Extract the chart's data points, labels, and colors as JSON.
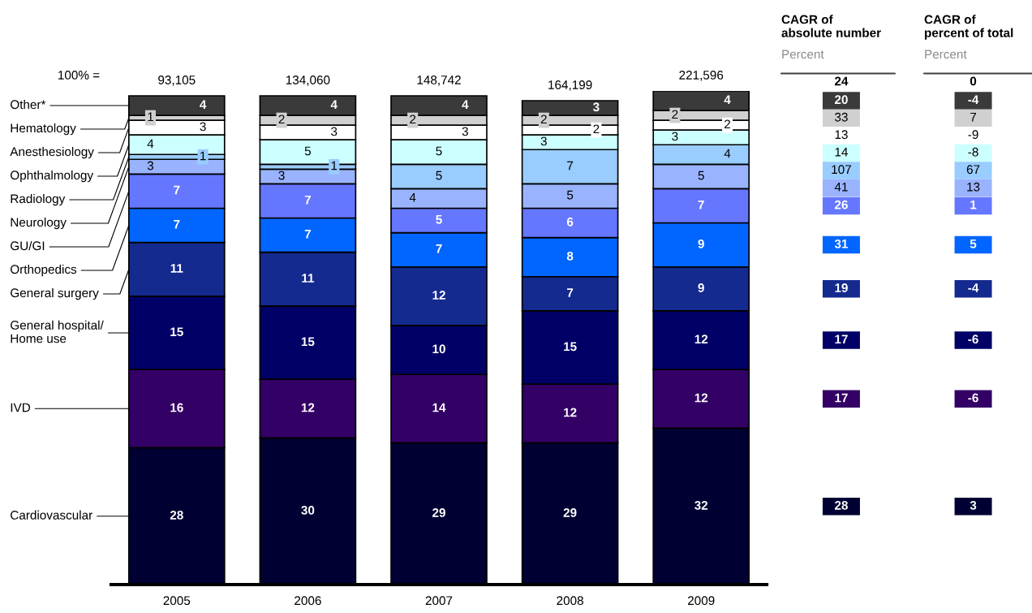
{
  "chart_data": [
    {
      "type": "bar",
      "stacked": true,
      "data_labels": true,
      "legend": "left",
      "categories": [
        "2005",
        "2006",
        "2007",
        "2008",
        "2009"
      ],
      "annotations": [
        "100% =",
        {
          "text": "93,105",
          "x": "2005",
          "y": 100
        },
        {
          "text": "134,060",
          "x": "2006",
          "y": 100
        },
        {
          "text": "148,742",
          "x": "2007",
          "y": 100
        },
        {
          "text": "164,199",
          "x": "2008",
          "y": 99
        },
        {
          "text": "221,596",
          "x": "2009",
          "y": 101
        }
      ],
      "series": [
        {
          "name": "Cardiovascular",
          "color": "#000033",
          "values": [
            28,
            30,
            29,
            29,
            32
          ]
        },
        {
          "name": "IVD",
          "color": "#330066",
          "values": [
            16,
            12,
            14,
            12,
            12
          ]
        },
        {
          "name": "General hospital/\nHome use",
          "color": "#000066",
          "values": [
            15,
            15,
            10,
            15,
            12
          ]
        },
        {
          "name": "General surgery",
          "color": "#142a8f",
          "values": [
            11,
            11,
            12,
            7,
            9
          ]
        },
        {
          "name": "Orthopedics",
          "color": "#0066ff",
          "values": [
            7,
            7,
            7,
            8,
            9
          ]
        },
        {
          "name": "GU/GI",
          "color": "#6677ff",
          "values": [
            7,
            7,
            5,
            6,
            7
          ]
        },
        {
          "name": "Neurology",
          "color": "#99b3ff",
          "values": [
            3,
            3,
            4,
            5,
            5
          ]
        },
        {
          "name": "Radiology",
          "color": "#99ccff",
          "values": [
            1,
            1,
            5,
            7,
            4
          ]
        },
        {
          "name": "Ophthalmology",
          "color": "#ccffff",
          "values": [
            4,
            5,
            5,
            3,
            3
          ]
        },
        {
          "name": "Anesthesiology",
          "color": "#ffffff",
          "values": [
            3,
            3,
            3,
            2,
            2
          ]
        },
        {
          "name": "Hematology",
          "color": "#d0d0d0",
          "values": [
            1,
            2,
            2,
            2,
            2
          ]
        },
        {
          "name": "Other*",
          "color": "#3a3a3a",
          "values": [
            4,
            4,
            4,
            3,
            4
          ]
        }
      ]
    },
    {
      "type": "other",
      "annotations": [
        "CAGR of\nabsolute number",
        "Percent",
        "CAGR of\npercent of total",
        "Percent",
        "24",
        "0",
        "20",
        "-4",
        "33",
        "7",
        "13",
        "-9",
        "14",
        "-8",
        "107",
        "67",
        "41",
        "13",
        "26",
        "1",
        "31",
        "5",
        "19",
        "-4",
        "17",
        "-6",
        "17",
        "-6",
        "28",
        "3"
      ],
      "colors": [
        null,
        "#3a3a3a",
        "#d0d0d0",
        "#ffffff",
        "#ccffff",
        "#99ccff",
        "#99b3ff",
        "#6677ff",
        "#0066ff",
        "#142a8f",
        "#000066",
        "#330066",
        "#000033"
      ]
    }
  ]
}
